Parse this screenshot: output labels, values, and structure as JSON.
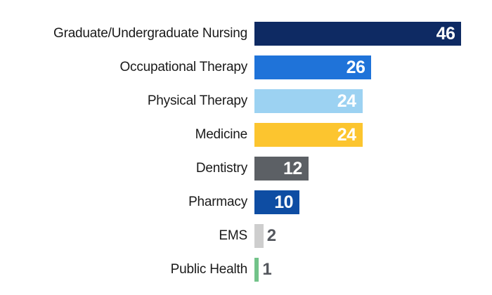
{
  "chart_data": {
    "type": "bar",
    "orientation": "horizontal",
    "title": "",
    "xlabel": "",
    "ylabel": "",
    "xlim": [
      0,
      46
    ],
    "grid": false,
    "legend": false,
    "axes_shown": false,
    "categories": [
      "Graduate/Undergraduate Nursing",
      "Occupational Therapy",
      "Physical Therapy",
      "Medicine",
      "Dentistry",
      "Pharmacy",
      "EMS",
      "Public Health"
    ],
    "values": [
      46,
      26,
      24,
      24,
      12,
      10,
      2,
      1
    ],
    "bars": [
      {
        "category": "Graduate/Undergraduate Nursing",
        "value": 46,
        "value_label": "46",
        "color": "#0e2a63",
        "value_label_placement": "inside"
      },
      {
        "category": "Occupational Therapy",
        "value": 26,
        "value_label": "26",
        "color": "#1f73d9",
        "value_label_placement": "inside"
      },
      {
        "category": "Physical Therapy",
        "value": 24,
        "value_label": "24",
        "color": "#9cd2f2",
        "value_label_placement": "inside"
      },
      {
        "category": "Medicine",
        "value": 24,
        "value_label": "24",
        "color": "#fcc52f",
        "value_label_placement": "inside"
      },
      {
        "category": "Dentistry",
        "value": 12,
        "value_label": "12",
        "color": "#5c6065",
        "value_label_placement": "inside"
      },
      {
        "category": "Pharmacy",
        "value": 10,
        "value_label": "10",
        "color": "#0e4da3",
        "value_label_placement": "inside"
      },
      {
        "category": "EMS",
        "value": 2,
        "value_label": "2",
        "color": "#cecece",
        "value_label_placement": "outside"
      },
      {
        "category": "Public Health",
        "value": 1,
        "value_label": "1",
        "color": "#72c389",
        "value_label_placement": "outside"
      }
    ],
    "colors": {
      "background": "#ffffff",
      "category_label": "#1a1a1a",
      "value_label_inside": "#ffffff",
      "value_label_outside": "#54575d"
    }
  }
}
